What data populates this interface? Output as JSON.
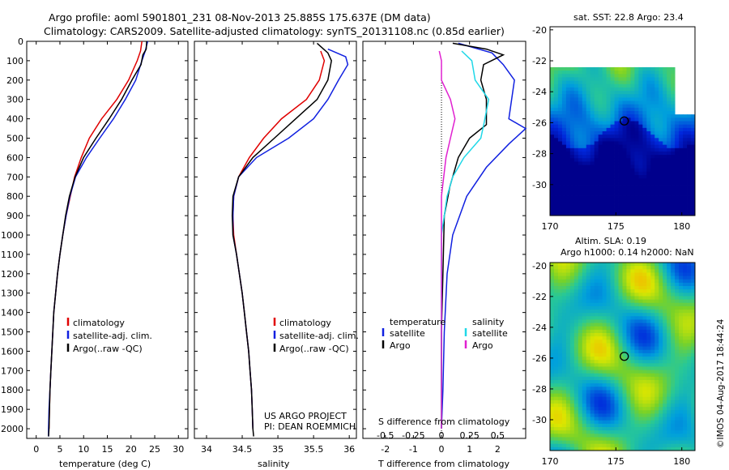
{
  "header": {
    "title_line1": "Argo profile: aoml 5901801_231 08-Nov-2013 25.885S 175.637E (DM data)",
    "title_line2": "Climatology: CARS2009. Satellite-adjusted climatology: synTS_20131108.nc (0.85d earlier)"
  },
  "colors": {
    "climatology": "#e00000",
    "satellite": "#1020e0",
    "argo": "#000000",
    "salinity_satellite": "#20d8e8",
    "salinity_argo": "#e020d0"
  },
  "credits": {
    "project": "US ARGO PROJECT",
    "pi": "PI: DEAN ROEMMICH",
    "imos": "©IMOS 04-Aug-2017 18:44:24"
  },
  "chart_data": [
    {
      "type": "line",
      "panel": "temperature",
      "xlabel": "temperature (deg C)",
      "xticks": [
        0,
        5,
        10,
        15,
        20,
        25,
        30
      ],
      "xlim": [
        -2,
        32
      ],
      "ylim": [
        2050,
        0
      ],
      "yticks": [
        0,
        100,
        200,
        300,
        400,
        500,
        600,
        700,
        800,
        900,
        1000,
        1100,
        1200,
        1300,
        1400,
        1500,
        1600,
        1700,
        1800,
        1900,
        2000
      ],
      "legend": [
        "climatology",
        "satellite-adj. clim.",
        "Argo(..raw -QC)"
      ],
      "series": [
        {
          "name": "climatology",
          "color": "climatology",
          "points": [
            [
              22.3,
              0
            ],
            [
              22,
              50
            ],
            [
              21.3,
              100
            ],
            [
              19.5,
              200
            ],
            [
              17,
              300
            ],
            [
              13.8,
              400
            ],
            [
              11.2,
              500
            ],
            [
              9.5,
              600
            ],
            [
              8.1,
              700
            ],
            [
              7.2,
              800
            ],
            [
              6.3,
              900
            ],
            [
              5.6,
              1000
            ],
            [
              5,
              1100
            ],
            [
              4.5,
              1200
            ],
            [
              4.1,
              1300
            ],
            [
              3.7,
              1400
            ],
            [
              3.5,
              1500
            ],
            [
              3.3,
              1600
            ],
            [
              3.1,
              1700
            ],
            [
              2.9,
              1800
            ],
            [
              2.8,
              1900
            ],
            [
              2.7,
              2000
            ]
          ]
        },
        {
          "name": "satellite-adj. clim.",
          "color": "satellite",
          "points": [
            [
              23.5,
              0
            ],
            [
              23,
              50
            ],
            [
              22.3,
              100
            ],
            [
              21,
              200
            ],
            [
              18.8,
              300
            ],
            [
              16.3,
              400
            ],
            [
              13.4,
              500
            ],
            [
              10.6,
              600
            ],
            [
              8.3,
              700
            ],
            [
              7.1,
              800
            ],
            [
              6.3,
              900
            ],
            [
              5.6,
              1000
            ],
            [
              5,
              1100
            ],
            [
              4.5,
              1200
            ],
            [
              4.1,
              1300
            ],
            [
              3.7,
              1400
            ],
            [
              3.5,
              1500
            ],
            [
              3.3,
              1600
            ],
            [
              3.1,
              1700
            ],
            [
              2.9,
              1800
            ],
            [
              2.7,
              1900
            ],
            [
              2.6,
              2000
            ],
            [
              2.6,
              2040
            ]
          ]
        },
        {
          "name": "Argo(..raw -QC)",
          "color": "argo",
          "points": [
            [
              23.3,
              0
            ],
            [
              23.2,
              40
            ],
            [
              22.5,
              70
            ],
            [
              22.1,
              120
            ],
            [
              20.2,
              200
            ],
            [
              18,
              300
            ],
            [
              15.4,
              400
            ],
            [
              12.6,
              500
            ],
            [
              10,
              600
            ],
            [
              8.2,
              700
            ],
            [
              7,
              800
            ],
            [
              6.2,
              900
            ],
            [
              5.6,
              1000
            ],
            [
              5,
              1100
            ],
            [
              4.5,
              1200
            ],
            [
              4.1,
              1300
            ],
            [
              3.7,
              1400
            ],
            [
              3.5,
              1500
            ],
            [
              3.3,
              1600
            ],
            [
              3.1,
              1700
            ],
            [
              2.9,
              1800
            ],
            [
              2.8,
              1900
            ],
            [
              2.7,
              2000
            ],
            [
              2.6,
              2040
            ]
          ]
        }
      ]
    },
    {
      "type": "line",
      "panel": "salinity",
      "xlabel": "salinity",
      "xticks": [
        34,
        34.5,
        35,
        35.5,
        36
      ],
      "xlim": [
        33.83,
        36.1
      ],
      "ylim": [
        2050,
        0
      ],
      "legend": [
        "climatology",
        "satellite-adj. clim.",
        "Argo(..raw -QC)"
      ],
      "series": [
        {
          "name": "climatology",
          "color": "climatology",
          "points": [
            [
              35.6,
              50
            ],
            [
              35.65,
              100
            ],
            [
              35.58,
              200
            ],
            [
              35.4,
              300
            ],
            [
              35.05,
              400
            ],
            [
              34.8,
              500
            ],
            [
              34.6,
              600
            ],
            [
              34.45,
              700
            ],
            [
              34.38,
              800
            ],
            [
              34.37,
              900
            ],
            [
              34.38,
              1000
            ],
            [
              34.42,
              1100
            ],
            [
              34.46,
              1200
            ],
            [
              34.5,
              1300
            ],
            [
              34.53,
              1400
            ],
            [
              34.56,
              1500
            ],
            [
              34.59,
              1600
            ],
            [
              34.61,
              1700
            ],
            [
              34.63,
              1800
            ],
            [
              34.64,
              1900
            ],
            [
              34.65,
              2000
            ]
          ]
        },
        {
          "name": "satellite-adj. clim.",
          "color": "satellite",
          "points": [
            [
              35.7,
              40
            ],
            [
              35.95,
              80
            ],
            [
              35.98,
              120
            ],
            [
              35.85,
              200
            ],
            [
              35.7,
              300
            ],
            [
              35.5,
              400
            ],
            [
              35.15,
              500
            ],
            [
              34.7,
              600
            ],
            [
              34.45,
              700
            ],
            [
              34.38,
              800
            ],
            [
              34.37,
              900
            ],
            [
              34.37,
              1000
            ],
            [
              34.42,
              1100
            ],
            [
              34.46,
              1200
            ],
            [
              34.5,
              1300
            ],
            [
              34.53,
              1400
            ],
            [
              34.56,
              1500
            ],
            [
              34.59,
              1600
            ],
            [
              34.61,
              1700
            ],
            [
              34.63,
              1800
            ],
            [
              34.64,
              1900
            ],
            [
              34.65,
              2000
            ]
          ]
        },
        {
          "name": "Argo(..raw -QC)",
          "color": "argo",
          "points": [
            [
              35.55,
              10
            ],
            [
              35.7,
              60
            ],
            [
              35.75,
              100
            ],
            [
              35.7,
              200
            ],
            [
              35.55,
              300
            ],
            [
              35.25,
              400
            ],
            [
              34.95,
              500
            ],
            [
              34.65,
              600
            ],
            [
              34.45,
              700
            ],
            [
              34.37,
              800
            ],
            [
              34.36,
              900
            ],
            [
              34.37,
              1000
            ],
            [
              34.42,
              1100
            ],
            [
              34.46,
              1200
            ],
            [
              34.5,
              1300
            ],
            [
              34.53,
              1400
            ],
            [
              34.56,
              1500
            ],
            [
              34.59,
              1600
            ],
            [
              34.61,
              1700
            ],
            [
              34.63,
              1800
            ],
            [
              34.64,
              1900
            ],
            [
              34.65,
              2000
            ],
            [
              34.66,
              2040
            ]
          ]
        }
      ]
    },
    {
      "type": "line",
      "panel": "differences",
      "xlabel": "T difference from climatology",
      "xlabel_top": "S difference from climatology",
      "xticks": [
        -2,
        -1,
        0,
        1,
        2
      ],
      "xticks_S": [
        -0.5,
        -0.25,
        0,
        0.25,
        0.5
      ],
      "xlim": [
        -2.8,
        3
      ],
      "ylim": [
        2050,
        0
      ],
      "legend_headers": [
        "temperature",
        "salinity"
      ],
      "legend": [
        "satellite",
        "Argo",
        "satellite",
        "Argo"
      ],
      "series": [
        {
          "name": "satellite",
          "variable": "T",
          "color": "satellite",
          "points": [
            [
              0.6,
              10
            ],
            [
              1.8,
              60
            ],
            [
              2.2,
              120
            ],
            [
              2.6,
              200
            ],
            [
              2.4,
              400
            ],
            [
              3,
              450
            ],
            [
              2.4,
              530
            ],
            [
              1.6,
              650
            ],
            [
              0.9,
              800
            ],
            [
              0.4,
              1000
            ],
            [
              0.2,
              1200
            ],
            [
              0.1,
              1500
            ],
            [
              0.05,
              1800
            ],
            [
              0,
              2000
            ]
          ]
        },
        {
          "name": "Argo",
          "variable": "T",
          "color": "argo",
          "points": [
            [
              0.4,
              10
            ],
            [
              1.6,
              40
            ],
            [
              2.2,
              70
            ],
            [
              1.5,
              120
            ],
            [
              1.4,
              200
            ],
            [
              1.6,
              300
            ],
            [
              1.6,
              430
            ],
            [
              1,
              500
            ],
            [
              0.6,
              600
            ],
            [
              0.3,
              750
            ],
            [
              0.1,
              900
            ],
            [
              0.05,
              1200
            ],
            [
              0,
              1500
            ],
            [
              0,
              2000
            ]
          ]
        },
        {
          "name": "satellite",
          "variable": "S",
          "color": "salinity_satellite",
          "points": [
            [
              0.18,
              50
            ],
            [
              0.27,
              100
            ],
            [
              0.3,
              200
            ],
            [
              0.42,
              300
            ],
            [
              0.38,
              420
            ],
            [
              0.35,
              500
            ],
            [
              0.2,
              600
            ],
            [
              0.1,
              700
            ],
            [
              0.05,
              800
            ],
            [
              0,
              1000
            ],
            [
              0,
              1200
            ],
            [
              0,
              2000
            ]
          ]
        },
        {
          "name": "Argo",
          "variable": "S",
          "color": "salinity_argo",
          "points": [
            [
              -0.02,
              50
            ],
            [
              0.0,
              100
            ],
            [
              0.0,
              200
            ],
            [
              0.08,
              300
            ],
            [
              0.12,
              400
            ],
            [
              0.08,
              500
            ],
            [
              0.04,
              600
            ],
            [
              0.02,
              700
            ],
            [
              0,
              800
            ],
            [
              0,
              1000
            ],
            [
              0,
              2000
            ]
          ]
        }
      ]
    },
    {
      "type": "heatmap",
      "panel": "sst_map",
      "title": "sat. SST: 22.8  Argo: 23.4",
      "xticks": [
        170,
        175,
        180
      ],
      "yticks": [
        -20,
        -22,
        -24,
        -26,
        -28,
        -30
      ],
      "xlim": [
        170,
        181
      ],
      "ylim": [
        -32,
        -19.8
      ],
      "marker": [
        175.637,
        -25.885
      ]
    },
    {
      "type": "heatmap",
      "panel": "sla_map",
      "title_line1": "Altim. SLA: 0.19",
      "title_line2": "Argo h1000: 0.14  h2000: NaN",
      "xticks": [
        170,
        175,
        180
      ],
      "yticks": [
        -20,
        -22,
        -24,
        -26,
        -28,
        -30
      ],
      "xlim": [
        170,
        181
      ],
      "ylim": [
        -32,
        -19.8
      ],
      "marker": [
        175.637,
        -25.885
      ]
    }
  ]
}
